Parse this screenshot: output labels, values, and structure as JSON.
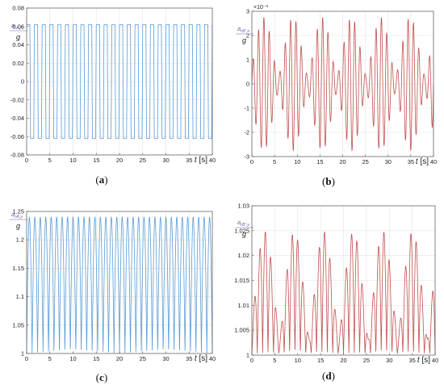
{
  "chart_data": [
    {
      "panel": "(a)",
      "type": "line",
      "ylabel_num": "a",
      "ylabel_sub": "rA,x",
      "ylabel_den": "g",
      "xlabel_var": "t",
      "xlabel_unit": "[s]",
      "xlim": [
        0,
        40
      ],
      "ylim": [
        -0.08,
        0.08
      ],
      "xticks": [
        "0",
        "5",
        "10",
        "15",
        "20",
        "25",
        "30",
        "35",
        "40"
      ],
      "yticks": [
        "-0.08",
        "-0.06",
        "-0.04",
        "-0.02",
        "0",
        "0.02",
        "0.04",
        "0.06",
        "0.08"
      ],
      "yexponent": "",
      "grid": true,
      "color": "#5b9bd5",
      "signal": {
        "kind": "square",
        "amplitude": 0.062,
        "cycles": 24
      }
    },
    {
      "panel": "(b)",
      "type": "line",
      "ylabel_num": "a",
      "ylabel_sub": "rB',x",
      "ylabel_den": "g",
      "xlabel_var": "t",
      "xlabel_unit": "[s]",
      "xlim": [
        0,
        40
      ],
      "ylim": [
        -3,
        3
      ],
      "xticks": [
        "0",
        "5",
        "10",
        "15",
        "20",
        "25",
        "30",
        "35",
        "40"
      ],
      "yticks": [
        "-3",
        "-2",
        "-1",
        "0",
        "1",
        "2",
        "3"
      ],
      "yexponent": "×10⁻³",
      "grid": true,
      "color": "#c0504d",
      "peaks": [
        {
          "t": 3.5,
          "v": 2.7
        },
        {
          "t": 4.2,
          "v": -2.6
        },
        {
          "t": 9.9,
          "v": 2.4
        },
        {
          "t": 10.6,
          "v": -2.4
        },
        {
          "t": 16.9,
          "v": 2.8
        },
        {
          "t": 17.6,
          "v": -2.8
        },
        {
          "t": 23.3,
          "v": 2.1
        },
        {
          "t": 24.1,
          "v": -2.2
        },
        {
          "t": 30.3,
          "v": 2.5
        },
        {
          "t": 31.0,
          "v": -2.6
        },
        {
          "t": 36.7,
          "v": 2.1
        },
        {
          "t": 37.4,
          "v": -2.1
        }
      ],
      "signal": {
        "kind": "beating",
        "f1": 0.85,
        "f2": 0.155
      }
    },
    {
      "panel": "(c)",
      "type": "line",
      "ylabel_num": "a",
      "ylabel_sub": "rA,y",
      "ylabel_den": "g",
      "xlabel_var": "t",
      "xlabel_unit": "[s]",
      "xlim": [
        0,
        40
      ],
      "ylim": [
        1,
        1.25
      ],
      "xticks": [
        "0",
        "5",
        "10",
        "15",
        "20",
        "25",
        "30",
        "35",
        "40"
      ],
      "yticks": [
        "1",
        "1.05",
        "1.1",
        "1.15",
        "1.2",
        "1.25"
      ],
      "yexponent": "",
      "grid": true,
      "color": "#5b9bd5",
      "signal": {
        "kind": "abs-sine",
        "min": 1.0,
        "max": 1.24,
        "cycles": 34
      }
    },
    {
      "panel": "(d)",
      "type": "line",
      "ylabel_num": "a",
      "ylabel_sub": "rB',y",
      "ylabel_den": "g",
      "xlabel_var": "t",
      "xlabel_unit": "[s]",
      "xlim": [
        0,
        40
      ],
      "ylim": [
        1,
        1.03
      ],
      "xticks": [
        "0",
        "5",
        "10",
        "15",
        "20",
        "25",
        "30",
        "35",
        "40"
      ],
      "yticks": [
        "1",
        "1.005",
        "1.01",
        "1.015",
        "1.02",
        "1.025",
        "1.03"
      ],
      "yexponent": "",
      "grid": true,
      "color": "#c0504d",
      "peaks": [
        {
          "t": 2.5,
          "v": 1.0215
        },
        {
          "t": 3.7,
          "v": 1.0235
        },
        {
          "t": 9.5,
          "v": 1.0215
        },
        {
          "t": 10.6,
          "v": 1.025
        },
        {
          "t": 16.5,
          "v": 1.0245
        },
        {
          "t": 17.6,
          "v": 1.0245
        },
        {
          "t": 23.3,
          "v": 1.0235
        },
        {
          "t": 24.5,
          "v": 1.0235
        },
        {
          "t": 30.3,
          "v": 1.025
        },
        {
          "t": 31.3,
          "v": 1.0215
        },
        {
          "t": 37.2,
          "v": 1.0235
        },
        {
          "t": 38.3,
          "v": 1.0215
        }
      ],
      "signal": {
        "kind": "beating-abs",
        "f1": 0.85,
        "f2": 0.155
      }
    }
  ]
}
